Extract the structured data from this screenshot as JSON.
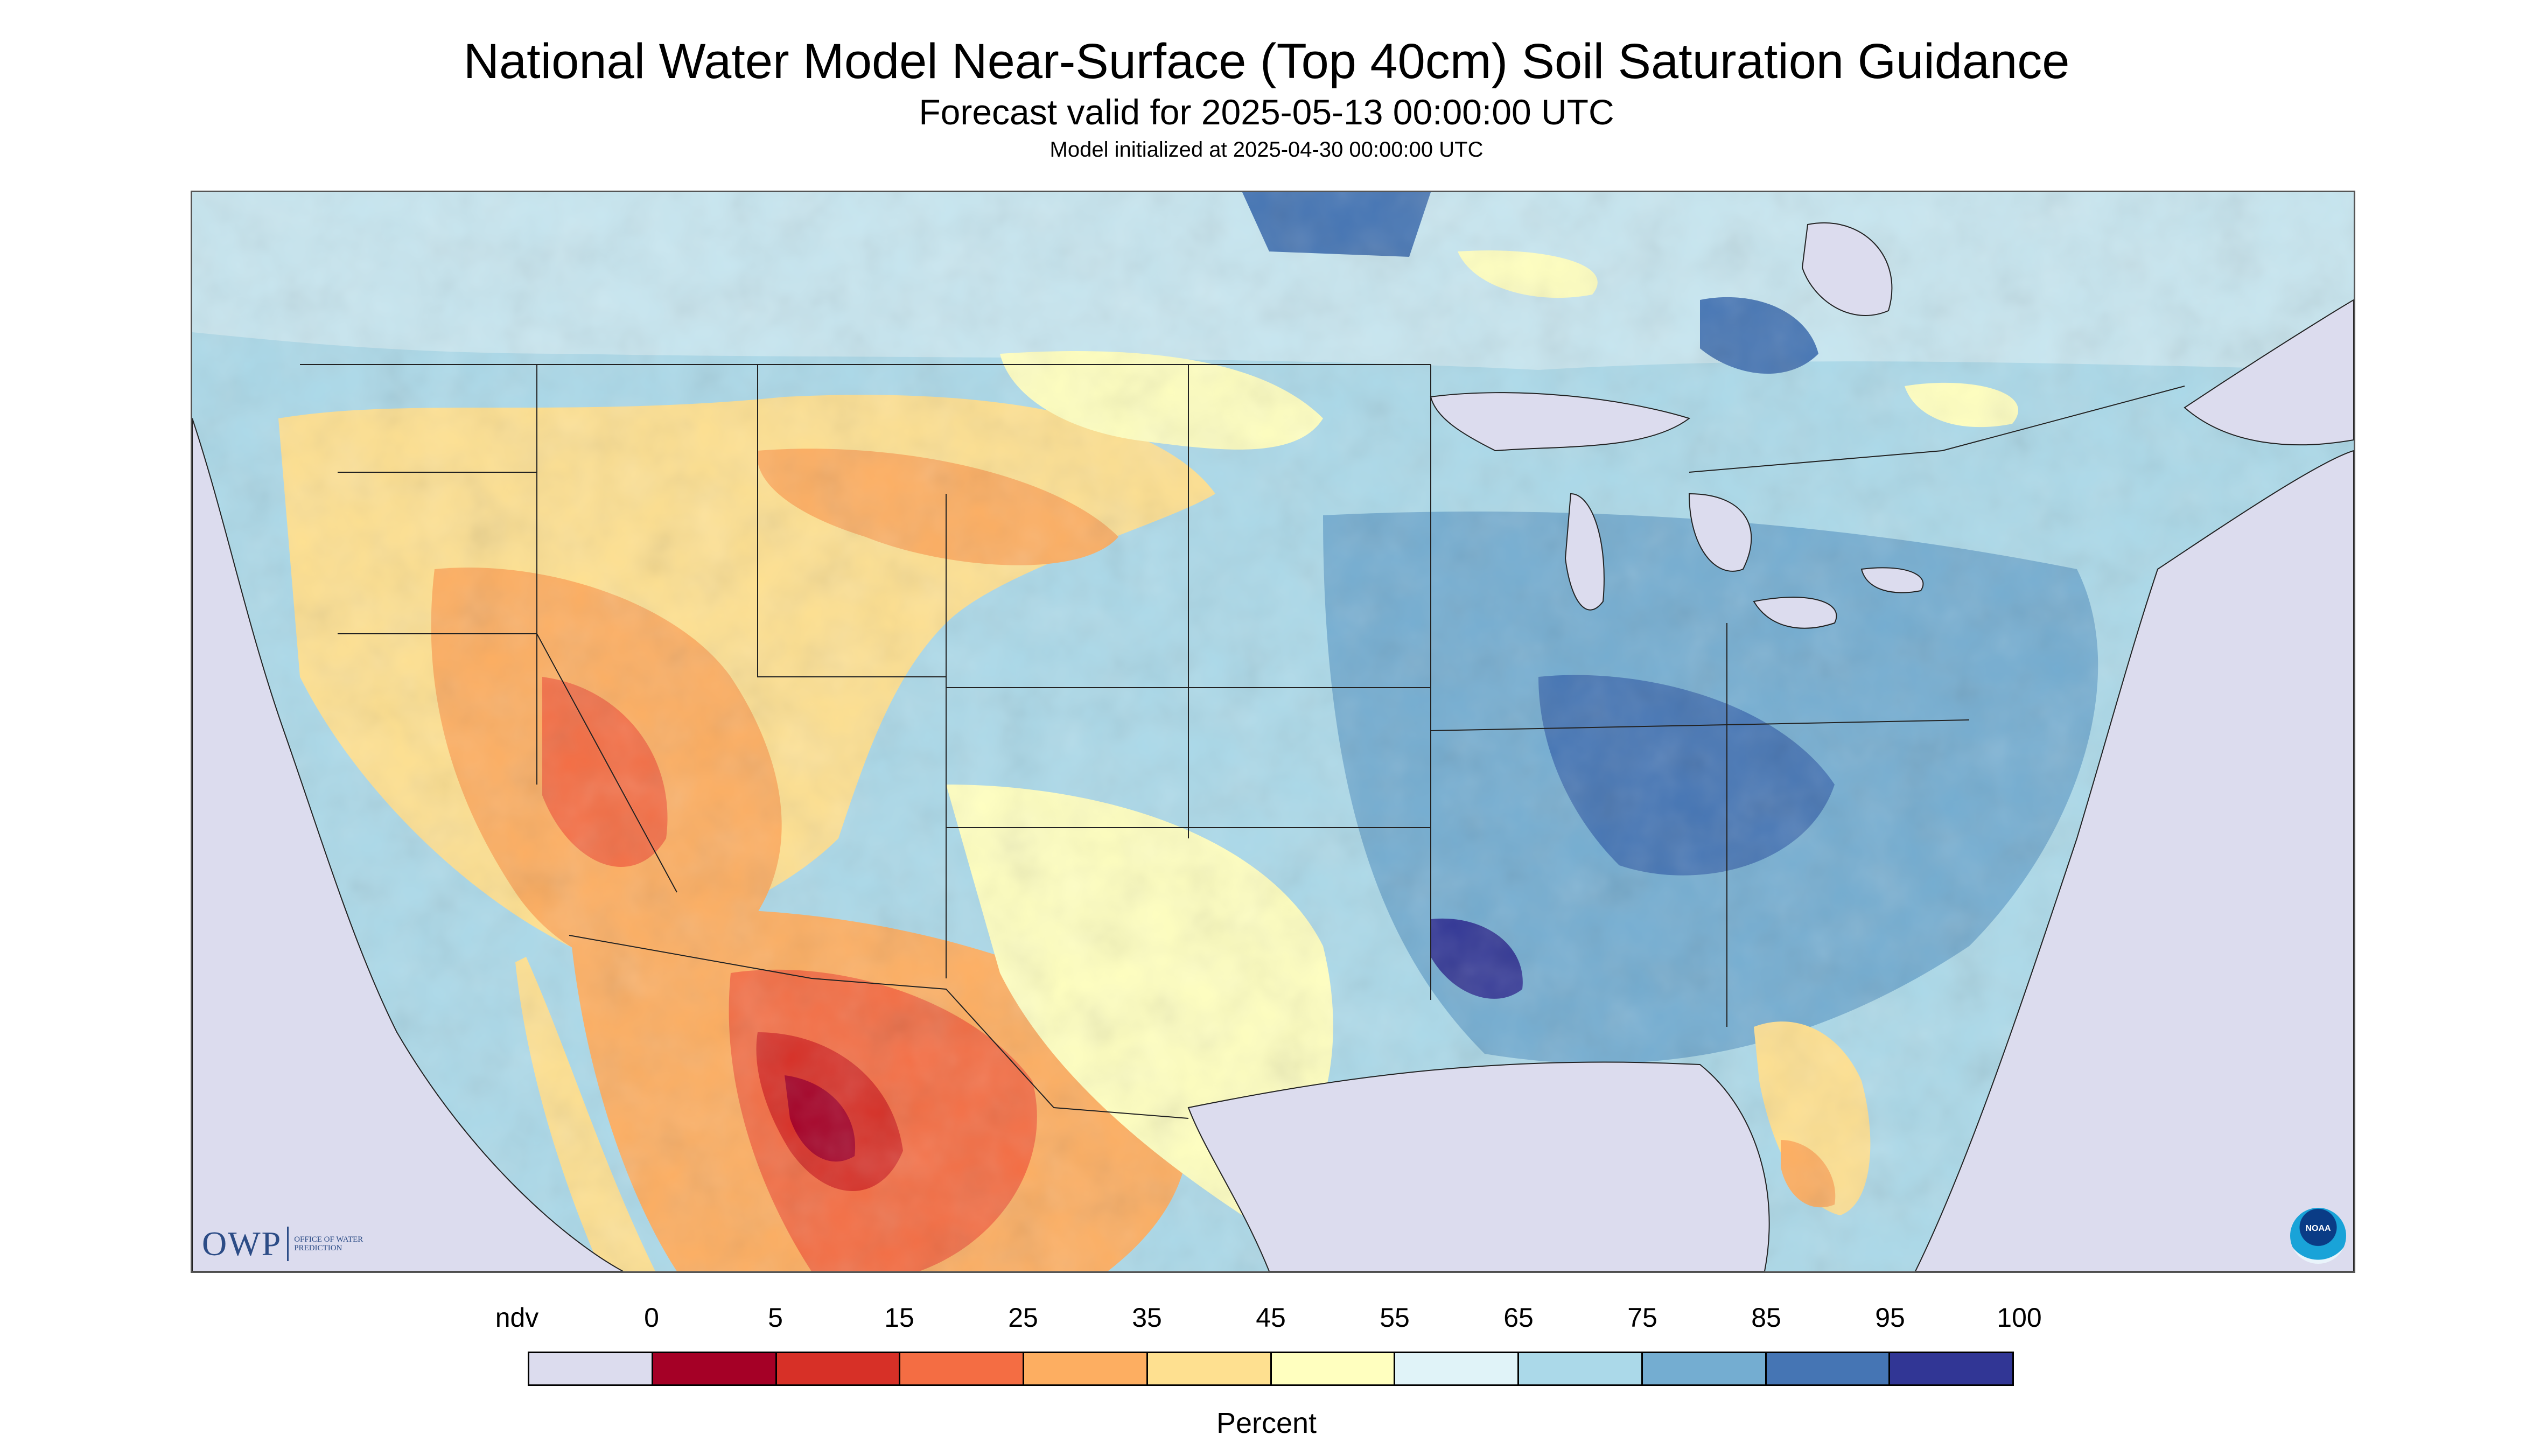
{
  "header": {
    "title": "National Water Model Near-Surface (Top 40cm) Soil Saturation Guidance",
    "subtitle": "Forecast valid for 2025-05-13 00:00:00 UTC",
    "init": "Model initialized at 2025-04-30 00:00:00 UTC"
  },
  "logos": {
    "owp_mark": "OWP",
    "owp_text": "Office of Water Prediction",
    "noaa": "NOAA"
  },
  "legend": {
    "units": "Percent",
    "labels": [
      "ndv",
      "0",
      "5",
      "15",
      "25",
      "35",
      "45",
      "55",
      "65",
      "75",
      "85",
      "95",
      "100"
    ],
    "colors": [
      "#dcdcee",
      "#a50026",
      "#d73027",
      "#f46d43",
      "#fdae61",
      "#fee090",
      "#ffffbf",
      "#e0f3f8",
      "#abd9e9",
      "#74add1",
      "#4575b4",
      "#313695"
    ]
  },
  "map": {
    "no_data_color": "#dcdcee",
    "water_color": "#dcdcee",
    "border_color": "#222222"
  }
}
